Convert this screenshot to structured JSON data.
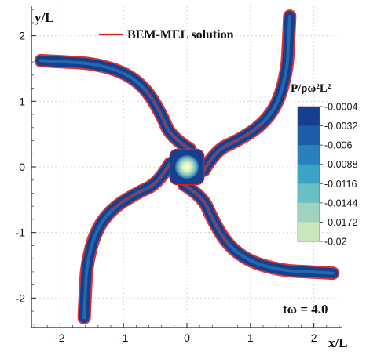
{
  "chart_data": {
    "type": "contour",
    "xlabel": "x/L",
    "ylabel": "y/L",
    "xlim": [
      -2.45,
      2.45
    ],
    "ylim": [
      -2.45,
      2.45
    ],
    "x_ticks": [
      -2,
      -1,
      0,
      1,
      2
    ],
    "y_ticks": [
      -2,
      -1,
      0,
      1,
      2
    ],
    "x_tick_labels": [
      "-2",
      "-1",
      "0",
      "1",
      "2"
    ],
    "y_tick_labels": [
      "-2",
      "-1",
      "0",
      "1",
      "2"
    ],
    "grid": true,
    "legend": {
      "position": "top",
      "entries": [
        {
          "label": "BEM-MEL solution",
          "color": "#d62020"
        }
      ]
    },
    "colorbar": {
      "title": "P/ρω²L²",
      "position": "right",
      "levels": [
        -0.0004,
        -0.0032,
        -0.006,
        -0.0088,
        -0.0116,
        -0.0144,
        -0.0172,
        -0.02
      ],
      "labels": [
        "-0.0004",
        "-0.0032",
        "-0.006",
        "-0.0088",
        "-0.0116",
        "-0.0144",
        "-0.0172",
        "-0.02"
      ],
      "colors": [
        "#173f8f",
        "#1d5ea8",
        "#2a7fbc",
        "#3ba3c6",
        "#69bfc4",
        "#9dd3bf",
        "#cae6ba",
        "#edf6c8"
      ]
    },
    "annotation": "tω = 4.0",
    "arms": {
      "count": 4,
      "rotation_deg": 90,
      "centerline": [
        [
          0.27,
          -0.05
        ],
        [
          0.45,
          0.25
        ],
        [
          0.8,
          0.4
        ],
        [
          1.2,
          0.65
        ],
        [
          1.45,
          1.0
        ],
        [
          1.58,
          1.5
        ],
        [
          1.6,
          1.9
        ],
        [
          1.62,
          2.3
        ]
      ],
      "red_overlay_range": [
        0.13,
        1.72
      ]
    }
  }
}
